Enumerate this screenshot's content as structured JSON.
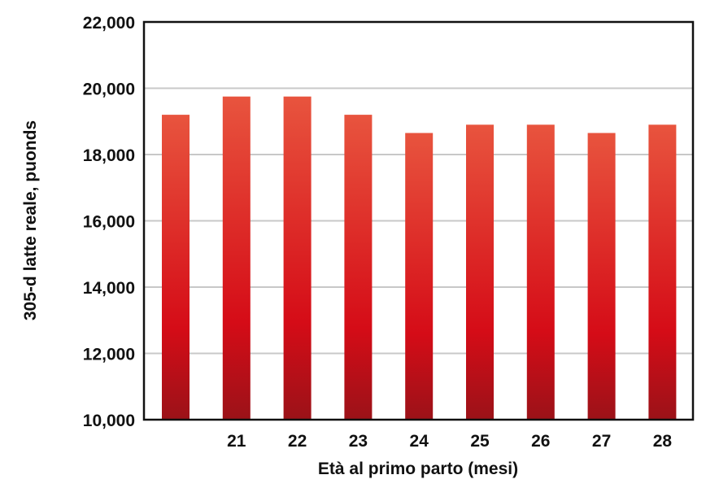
{
  "chart_data": {
    "type": "bar",
    "title": "",
    "xlabel": "Età al primo parto (mesi)",
    "ylabel": "305-d latte reale, puonds",
    "ylim": [
      10000,
      22000
    ],
    "yticks": [
      10000,
      12000,
      14000,
      16000,
      18000,
      20000,
      22000
    ],
    "ytick_labels": [
      "10,000",
      "12,000",
      "14,000",
      "16,000",
      "18,000",
      "20,000",
      "22,000"
    ],
    "categories": [
      "",
      "21",
      "22",
      "23",
      "24",
      "25",
      "26",
      "27",
      "28"
    ],
    "values": [
      19200,
      19750,
      19750,
      19200,
      18650,
      18900,
      18900,
      18650,
      18900
    ],
    "grid": true,
    "legend": "none",
    "colors": {
      "bar_top": "#e8543e",
      "bar_mid": "#d50c17",
      "bar_bottom": "#9b1218",
      "grid": "#c8c8c8",
      "frame": "#111111"
    }
  }
}
